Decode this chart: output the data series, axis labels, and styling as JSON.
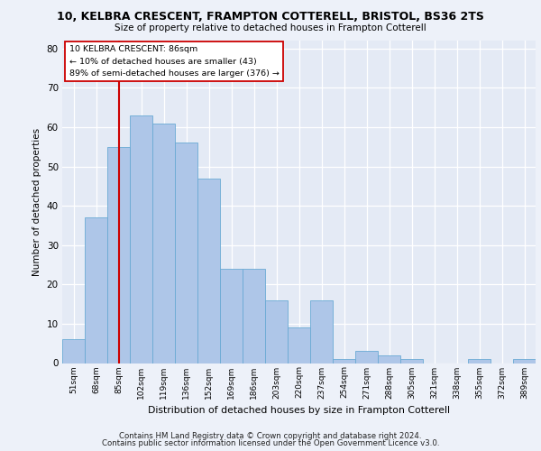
{
  "title_line1": "10, KELBRA CRESCENT, FRAMPTON COTTERELL, BRISTOL, BS36 2TS",
  "title_line2": "Size of property relative to detached houses in Frampton Cotterell",
  "xlabel": "Distribution of detached houses by size in Frampton Cotterell",
  "ylabel": "Number of detached properties",
  "footer_line1": "Contains HM Land Registry data © Crown copyright and database right 2024.",
  "footer_line2": "Contains public sector information licensed under the Open Government Licence v3.0.",
  "categories": [
    "51sqm",
    "68sqm",
    "85sqm",
    "102sqm",
    "119sqm",
    "136sqm",
    "152sqm",
    "169sqm",
    "186sqm",
    "203sqm",
    "220sqm",
    "237sqm",
    "254sqm",
    "271sqm",
    "288sqm",
    "305sqm",
    "321sqm",
    "338sqm",
    "355sqm",
    "372sqm",
    "389sqm"
  ],
  "values": [
    6,
    37,
    55,
    63,
    61,
    56,
    47,
    24,
    24,
    16,
    9,
    16,
    1,
    3,
    2,
    1,
    0,
    0,
    1,
    0,
    1
  ],
  "bar_color": "#aec6e8",
  "bar_edge_color": "#6aaad4",
  "vline_x": 2,
  "vline_color": "#cc0000",
  "annotation_line1": "10 KELBRA CRESCENT: 86sqm",
  "annotation_line2": "← 10% of detached houses are smaller (43)",
  "annotation_line3": "89% of semi-detached houses are larger (376) →",
  "ylim": [
    0,
    82
  ],
  "yticks": [
    0,
    10,
    20,
    30,
    40,
    50,
    60,
    70,
    80
  ],
  "bg_color": "#edf1f9",
  "plot_bg_color": "#e4eaf5"
}
